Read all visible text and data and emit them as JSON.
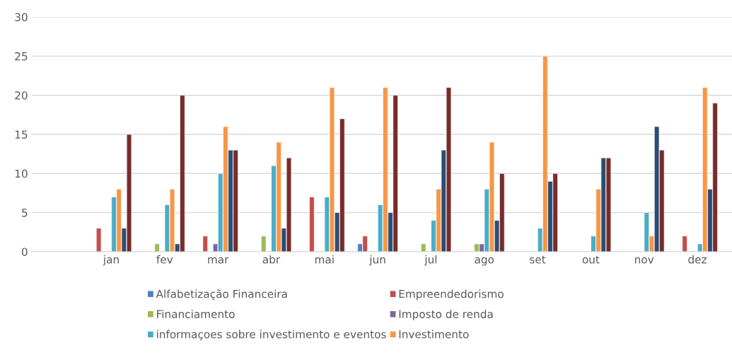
{
  "chart_data": {
    "type": "bar",
    "categories": [
      null,
      "jan",
      "fev",
      "mar",
      "abr",
      "mai",
      "jun",
      "jul",
      "ago",
      "set",
      "out",
      "nov",
      "dez"
    ],
    "series": [
      {
        "name": "Alfabetização Financeira",
        "color": "#4f81bd",
        "values": [
          null,
          null,
          null,
          null,
          null,
          null,
          1,
          null,
          null,
          null,
          null,
          null,
          null
        ]
      },
      {
        "name": "Empreendedorismo",
        "color": "#c0504d",
        "values": [
          null,
          3,
          null,
          2,
          null,
          7,
          2,
          null,
          null,
          null,
          null,
          null,
          2
        ]
      },
      {
        "name": "Financiamento",
        "color": "#9bbb59",
        "values": [
          null,
          null,
          1,
          null,
          2,
          null,
          null,
          1,
          1,
          null,
          null,
          null,
          null
        ]
      },
      {
        "name": "Imposto de renda",
        "color": "#8064a2",
        "values": [
          null,
          null,
          null,
          1,
          null,
          null,
          null,
          null,
          1,
          null,
          null,
          null,
          null
        ]
      },
      {
        "name": "informaçoes sobre investimento e eventos",
        "color": "#4bacc6",
        "values": [
          null,
          7,
          6,
          10,
          11,
          7,
          6,
          4,
          8,
          3,
          2,
          5,
          1
        ]
      },
      {
        "name": "Investimento",
        "color": "#f79646",
        "values": [
          null,
          8,
          8,
          16,
          14,
          21,
          21,
          8,
          14,
          25,
          8,
          2,
          21
        ]
      },
      {
        "color": "#2c4d75",
        "values": [
          null,
          3,
          1,
          13,
          3,
          5,
          5,
          13,
          4,
          9,
          12,
          16,
          8
        ]
      },
      {
        "color": "#772c2a",
        "values": [
          null,
          15,
          20,
          13,
          12,
          17,
          20,
          21,
          10,
          10,
          12,
          13,
          19
        ]
      }
    ],
    "ylim": [
      0,
      30
    ],
    "yticks": [
      0,
      5,
      10,
      15,
      20,
      25,
      30
    ],
    "grid": "y",
    "legend": "bottom"
  }
}
